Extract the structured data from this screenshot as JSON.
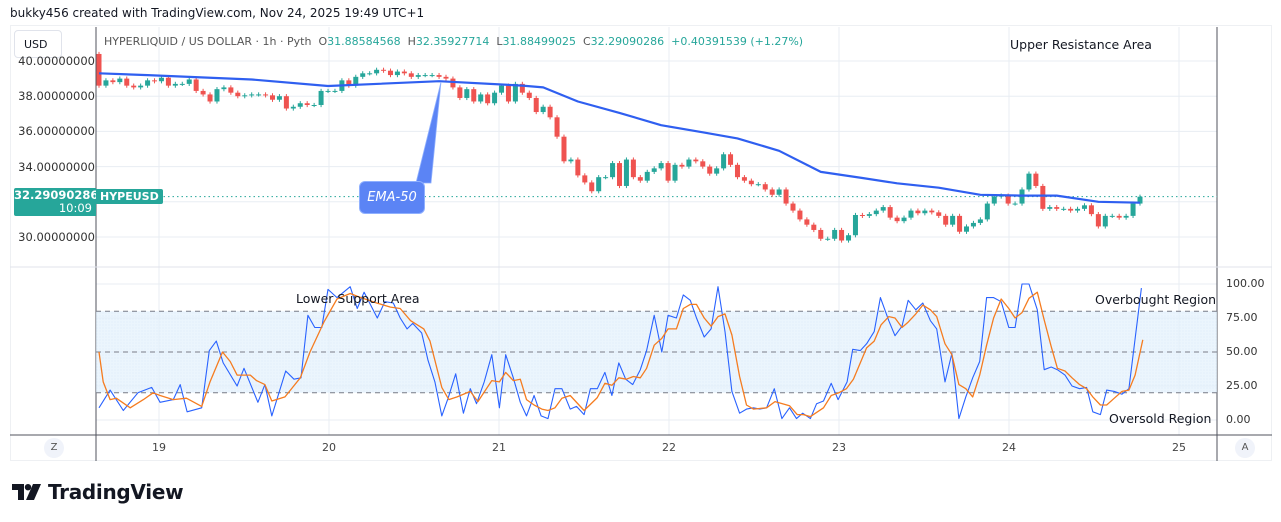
{
  "credit": "bukky456 created with TradingView.com, Nov 24, 2025 19:49 UTC+1",
  "currency_button": "USD",
  "legend": {
    "symbol": "HYPERLIQUID / US DOLLAR · 1h · Pyth",
    "open_label": "O",
    "open": "31.88584568",
    "high_label": "H",
    "high": "32.35927714",
    "low_label": "L",
    "low": "31.88499025",
    "close_label": "C",
    "close": "32.29090286",
    "change": "+0.40391539 (+1.27%)"
  },
  "price_axis": {
    "ticks": [
      "40.00000000",
      "38.00000000",
      "36.00000000",
      "34.00000000",
      "30.00000000"
    ],
    "tick_values": [
      40,
      38,
      36,
      34,
      30
    ]
  },
  "current_price": {
    "value": "32.29090286",
    "countdown": "10:09",
    "symbol": "HYPEUSD",
    "numeric": 32.29090286
  },
  "osc_axis": {
    "ticks": [
      "100.00",
      "75.00",
      "50.00",
      "25.00",
      "0.00"
    ],
    "tick_values": [
      100,
      75,
      50,
      25,
      0
    ],
    "bands": [
      80,
      50,
      20
    ]
  },
  "time_axis": {
    "ticks": [
      "19",
      "20",
      "21",
      "22",
      "23",
      "24",
      "25"
    ]
  },
  "axis_buttons": {
    "left": "Z",
    "right": "A"
  },
  "annotations": {
    "upper_resistance": "Upper Resistance Area",
    "lower_support": "Lower Support Area",
    "overbought": "Overbought Region",
    "oversold": "Oversold Region",
    "ema_label": "EMA-50"
  },
  "logo_text": "TradingView",
  "colors": {
    "up": "#26a69a",
    "down": "#ef5350",
    "ema": "#2f5ff0",
    "k_line": "#2962ff",
    "d_line": "#f57c20",
    "band": "#e3f2fd"
  },
  "chart_data": {
    "type": "candlestick",
    "interval": "1h",
    "first_open": 40.4,
    "closes": [
      38.6,
      38.9,
      38.8,
      39.0,
      38.6,
      38.5,
      38.6,
      38.9,
      38.85,
      39.05,
      38.6,
      38.7,
      38.7,
      38.95,
      38.3,
      38.1,
      37.7,
      38.4,
      38.5,
      38.2,
      38.0,
      38.05,
      38.1,
      38.1,
      38.05,
      37.8,
      38.0,
      37.3,
      37.4,
      37.6,
      37.5,
      37.5,
      38.3,
      38.3,
      38.3,
      38.9,
      38.6,
      39.1,
      39.3,
      39.3,
      39.5,
      39.45,
      39.2,
      39.4,
      39.3,
      39.1,
      39.2,
      39.2,
      39.2,
      39.1,
      39.0,
      38.5,
      37.9,
      38.4,
      37.7,
      38.1,
      37.6,
      38.2,
      38.6,
      37.7,
      38.7,
      38.2,
      37.9,
      37.1,
      37.4,
      36.8,
      35.7,
      34.3,
      34.4,
      33.5,
      33.1,
      32.6,
      33.4,
      33.4,
      34.2,
      32.9,
      34.4,
      33.4,
      33.2,
      33.7,
      33.9,
      34.2,
      33.2,
      34.1,
      34.0,
      34.4,
      34.3,
      34.0,
      33.6,
      33.9,
      34.7,
      34.1,
      33.4,
      33.2,
      33.0,
      33.0,
      32.7,
      32.4,
      32.7,
      31.9,
      31.5,
      31.0,
      30.7,
      30.4,
      29.9,
      29.9,
      30.4,
      29.8,
      30.1,
      31.25,
      31.2,
      31.3,
      31.5,
      31.7,
      31.1,
      30.9,
      31.1,
      31.5,
      31.35,
      31.5,
      31.4,
      31.2,
      30.7,
      31.2,
      30.3,
      30.6,
      30.8,
      31.0,
      31.9,
      32.3,
      32.35,
      31.9,
      31.9,
      32.7,
      33.6,
      32.9,
      31.6,
      31.7,
      31.6,
      31.6,
      31.5,
      31.6,
      31.8,
      31.3,
      30.6,
      31.2,
      31.2,
      31.1,
      31.2,
      31.9,
      32.29
    ],
    "ema50": [
      [
        0,
        39.3
      ],
      [
        7,
        39.2
      ],
      [
        22,
        38.95
      ],
      [
        33,
        38.58
      ],
      [
        49,
        38.85
      ],
      [
        61,
        38.6
      ],
      [
        64,
        38.5
      ],
      [
        69,
        37.7
      ],
      [
        75,
        37.05
      ],
      [
        81,
        36.35
      ],
      [
        87,
        35.95
      ],
      [
        92,
        35.6
      ],
      [
        98,
        34.9
      ],
      [
        104,
        33.7
      ],
      [
        110,
        33.35
      ],
      [
        115,
        33.05
      ],
      [
        121,
        32.8
      ],
      [
        127,
        32.4
      ],
      [
        133,
        32.35
      ],
      [
        138,
        32.35
      ],
      [
        144,
        32.0
      ],
      [
        150,
        31.95
      ]
    ],
    "stoch_k": [
      [
        0,
        9
      ],
      [
        1.6,
        22
      ],
      [
        3.5,
        7
      ],
      [
        5.6,
        20
      ],
      [
        7.6,
        24
      ],
      [
        8.8,
        13
      ],
      [
        10.7,
        15
      ],
      [
        11.7,
        26
      ],
      [
        12.7,
        6
      ],
      [
        14.8,
        9
      ],
      [
        15.9,
        51
      ],
      [
        16.9,
        58
      ],
      [
        17.9,
        42
      ],
      [
        19.9,
        25
      ],
      [
        20.9,
        38
      ],
      [
        22.9,
        13
      ],
      [
        23.9,
        26
      ],
      [
        24.9,
        3
      ],
      [
        26.9,
        36
      ],
      [
        28.1,
        30
      ],
      [
        29.1,
        31
      ],
      [
        30.1,
        77
      ],
      [
        31.1,
        68
      ],
      [
        32.1,
        68
      ],
      [
        33,
        96
      ],
      [
        34.3,
        90
      ],
      [
        36.2,
        98
      ],
      [
        37.2,
        82
      ],
      [
        38.2,
        94
      ],
      [
        40.1,
        75
      ],
      [
        41.2,
        87
      ],
      [
        42.4,
        86
      ],
      [
        43.4,
        75
      ],
      [
        44.4,
        67
      ],
      [
        45.2,
        71
      ],
      [
        46.5,
        64
      ],
      [
        47.4,
        44
      ],
      [
        48.4,
        28
      ],
      [
        49.4,
        3
      ],
      [
        50.3,
        16
      ],
      [
        51.4,
        34
      ],
      [
        52.5,
        5
      ],
      [
        53.5,
        23
      ],
      [
        54.4,
        12
      ],
      [
        55.5,
        28
      ],
      [
        56.6,
        48
      ],
      [
        57.7,
        9
      ],
      [
        58.6,
        48
      ],
      [
        59.7,
        31
      ],
      [
        60.7,
        13
      ],
      [
        61.6,
        3
      ],
      [
        62.7,
        18
      ],
      [
        63.7,
        3
      ],
      [
        64.7,
        1
      ],
      [
        65.7,
        23
      ],
      [
        66.7,
        23
      ],
      [
        67.9,
        8
      ],
      [
        68.8,
        10
      ],
      [
        69.9,
        4
      ],
      [
        70.8,
        23
      ],
      [
        71.8,
        23
      ],
      [
        72.9,
        35
      ],
      [
        73.9,
        18
      ],
      [
        74.9,
        42
      ],
      [
        75.9,
        30
      ],
      [
        76.9,
        26
      ],
      [
        78,
        37
      ],
      [
        78.9,
        51
      ],
      [
        80,
        77
      ],
      [
        81.1,
        50
      ],
      [
        82,
        77
      ],
      [
        83.2,
        75
      ],
      [
        84.2,
        92
      ],
      [
        85.2,
        88
      ],
      [
        86.1,
        75
      ],
      [
        87.2,
        61
      ],
      [
        88.2,
        67
      ],
      [
        89.2,
        98
      ],
      [
        90.2,
        65
      ],
      [
        91.2,
        21
      ],
      [
        92.3,
        5
      ],
      [
        93.3,
        8
      ],
      [
        94.3,
        9
      ],
      [
        95.2,
        8
      ],
      [
        96.2,
        9
      ],
      [
        97.3,
        23
      ],
      [
        98.4,
        1
      ],
      [
        99.5,
        9
      ],
      [
        100.5,
        1
      ],
      [
        101.4,
        5
      ],
      [
        102.5,
        1
      ],
      [
        103.4,
        12
      ],
      [
        104.4,
        14
      ],
      [
        105.5,
        27
      ],
      [
        106.5,
        15
      ],
      [
        107.8,
        28
      ],
      [
        108.6,
        52
      ],
      [
        109.7,
        51
      ],
      [
        110.6,
        56
      ],
      [
        111.7,
        65
      ],
      [
        112.6,
        90
      ],
      [
        113.8,
        73
      ],
      [
        114.7,
        62
      ],
      [
        115.7,
        69
      ],
      [
        116.6,
        88
      ],
      [
        117.7,
        81
      ],
      [
        118.7,
        86
      ],
      [
        119.8,
        73
      ],
      [
        120.7,
        67
      ],
      [
        121.9,
        28
      ],
      [
        122.9,
        49
      ],
      [
        123.9,
        1
      ],
      [
        124.9,
        17
      ],
      [
        125.9,
        31
      ],
      [
        126.9,
        43
      ],
      [
        127.9,
        90
      ],
      [
        128.9,
        90
      ],
      [
        130,
        87
      ],
      [
        131.1,
        68
      ],
      [
        132,
        68
      ],
      [
        133,
        100
      ],
      [
        134,
        100
      ],
      [
        135.2,
        81
      ],
      [
        136.2,
        37
      ],
      [
        137.2,
        39
      ],
      [
        138.1,
        37
      ],
      [
        139.2,
        33
      ],
      [
        140.2,
        25
      ],
      [
        141.3,
        23
      ],
      [
        142.3,
        24
      ],
      [
        143.2,
        6
      ],
      [
        144.3,
        4
      ],
      [
        145.2,
        22
      ],
      [
        146.3,
        21
      ],
      [
        147.4,
        19
      ],
      [
        148.4,
        23
      ],
      [
        150.2,
        97
      ]
    ],
    "stoch_d": [
      [
        0,
        50
      ],
      [
        0.6,
        28
      ],
      [
        1.6,
        15
      ],
      [
        2.5,
        16
      ],
      [
        4.5,
        9
      ],
      [
        6.4,
        15
      ],
      [
        7.8,
        20
      ],
      [
        8.8,
        18
      ],
      [
        10.7,
        15
      ],
      [
        12.6,
        16
      ],
      [
        14.8,
        10
      ],
      [
        16,
        28
      ],
      [
        17.8,
        50
      ],
      [
        18.9,
        43
      ],
      [
        19.9,
        33
      ],
      [
        21.8,
        33
      ],
      [
        22.7,
        29
      ],
      [
        23.9,
        26
      ],
      [
        24.9,
        14
      ],
      [
        26.8,
        17
      ],
      [
        29,
        31
      ],
      [
        30.4,
        50
      ],
      [
        32.4,
        72
      ],
      [
        34.3,
        89
      ],
      [
        36.2,
        93
      ],
      [
        37.2,
        91
      ],
      [
        40,
        86
      ],
      [
        42,
        83
      ],
      [
        43.4,
        82
      ],
      [
        44.9,
        73
      ],
      [
        46.8,
        67
      ],
      [
        47.7,
        58
      ],
      [
        49.4,
        24
      ],
      [
        50.4,
        15
      ],
      [
        51.6,
        17
      ],
      [
        53.5,
        21
      ],
      [
        54.6,
        13.5
      ],
      [
        56.6,
        29
      ],
      [
        57.7,
        28
      ],
      [
        58.6,
        35
      ],
      [
        59.7,
        29
      ],
      [
        60.7,
        30
      ],
      [
        61.6,
        15
      ],
      [
        62.7,
        11
      ],
      [
        63.8,
        8
      ],
      [
        64.7,
        7
      ],
      [
        65.7,
        9
      ],
      [
        66.7,
        16
      ],
      [
        67.9,
        18
      ],
      [
        69.9,
        7
      ],
      [
        71.8,
        16.5
      ],
      [
        72.9,
        27
      ],
      [
        73.9,
        25.5
      ],
      [
        74.9,
        31
      ],
      [
        76,
        30
      ],
      [
        77,
        32
      ],
      [
        78,
        31
      ],
      [
        78.9,
        38
      ],
      [
        80,
        55
      ],
      [
        81.1,
        60
      ],
      [
        82,
        67
      ],
      [
        83.2,
        67
      ],
      [
        84.2,
        82
      ],
      [
        85.2,
        85
      ],
      [
        86.1,
        85
      ],
      [
        87.2,
        75
      ],
      [
        88.2,
        69
      ],
      [
        89.2,
        76
      ],
      [
        90.2,
        78
      ],
      [
        91.2,
        62.5
      ],
      [
        92.3,
        32
      ],
      [
        93.3,
        11
      ],
      [
        94.3,
        8
      ],
      [
        96.2,
        9
      ],
      [
        97.4,
        13.5
      ],
      [
        99.5,
        10.5
      ],
      [
        100.6,
        4
      ],
      [
        101.5,
        4
      ],
      [
        102.5,
        2.5
      ],
      [
        104.4,
        9
      ],
      [
        105.5,
        18
      ],
      [
        106.6,
        20
      ],
      [
        107.7,
        23
      ],
      [
        108.7,
        30
      ],
      [
        110.6,
        53
      ],
      [
        111.7,
        58
      ],
      [
        112.7,
        70
      ],
      [
        113.8,
        76
      ],
      [
        114.7,
        75
      ],
      [
        115.7,
        68
      ],
      [
        116.6,
        72
      ],
      [
        117.7,
        78
      ],
      [
        118.7,
        84.5
      ],
      [
        119.8,
        81
      ],
      [
        120.7,
        76
      ],
      [
        121.9,
        56
      ],
      [
        122.9,
        48
      ],
      [
        123.9,
        26
      ],
      [
        124.9,
        23
      ],
      [
        125.9,
        17
      ],
      [
        126.9,
        33
      ],
      [
        127.9,
        55
      ],
      [
        128.9,
        75
      ],
      [
        130,
        89
      ],
      [
        131.1,
        82
      ],
      [
        132,
        75
      ],
      [
        133,
        79
      ],
      [
        134,
        89.5
      ],
      [
        135.2,
        94
      ],
      [
        136.2,
        73.5
      ],
      [
        137.2,
        54
      ],
      [
        138.1,
        38
      ],
      [
        139.2,
        36
      ],
      [
        140.2,
        31
      ],
      [
        141.3,
        26
      ],
      [
        142.3,
        23
      ],
      [
        143.2,
        17
      ],
      [
        144.3,
        11
      ],
      [
        145.2,
        11
      ],
      [
        146.3,
        16
      ],
      [
        147.4,
        21
      ],
      [
        148.4,
        22
      ],
      [
        149.3,
        33
      ],
      [
        150.4,
        59
      ]
    ]
  }
}
